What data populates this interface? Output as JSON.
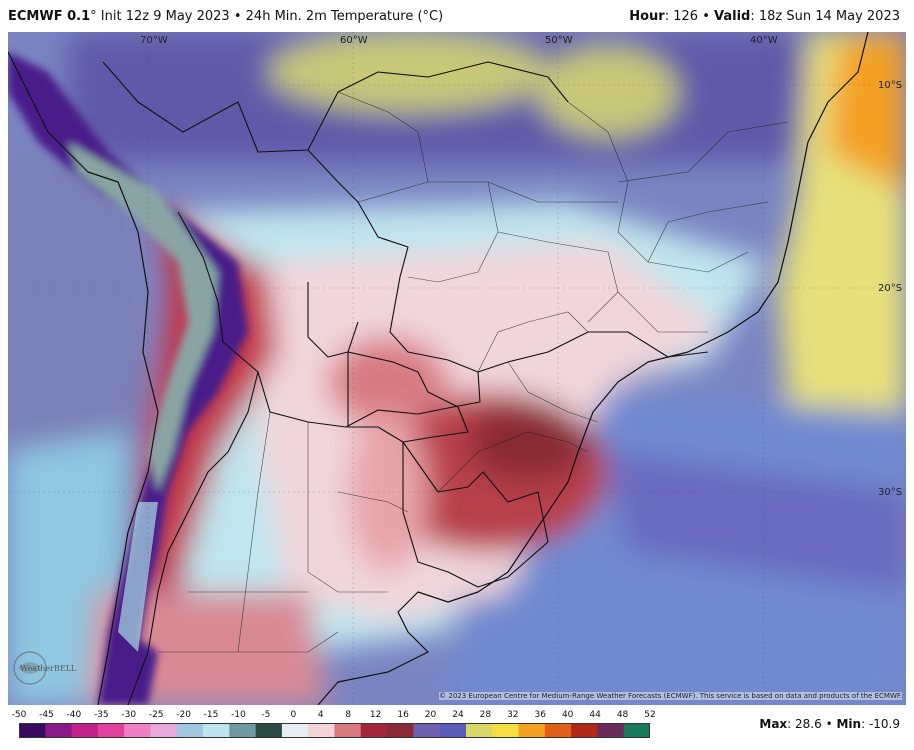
{
  "header": {
    "model": "ECMWF 0.1",
    "degree_symbol": "°",
    "init": "Init 12z 9 May 2023",
    "bullet": "•",
    "product": "24h Min. 2m Temperature (°C)",
    "hour_label": "Hour",
    "hour_value": "126",
    "valid_label": "Valid",
    "valid_value": "18z Sun 14 May 2023"
  },
  "map": {
    "longitude_labels": [
      "70°W",
      "60°W",
      "50°W",
      "40°W"
    ],
    "latitude_labels": [
      "10°S",
      "20°S",
      "30°S"
    ],
    "attribution": "© 2023 European Centre for Medium-Range Weather Forecasts (ECMWF). This service is based on data and products of the ECMWF.",
    "logo_text": "WeatherBELL"
  },
  "legend": {
    "ticks": [
      "-50",
      "-45",
      "-40",
      "-35",
      "-30",
      "-25",
      "-20",
      "-15",
      "-10",
      "-5",
      "0",
      "4",
      "8",
      "12",
      "16",
      "20",
      "24",
      "28",
      "32",
      "36",
      "40",
      "44",
      "48",
      "52"
    ],
    "colors": [
      "#3a0a5e",
      "#8a1a8a",
      "#c2228a",
      "#e0429e",
      "#ee7fc4",
      "#e8a8d8",
      "#a0c8e0",
      "#bfe4ee",
      "#6f9aa0",
      "#2a4a44",
      "#e9eef2",
      "#f4d4d6",
      "#d67a80",
      "#a2273a",
      "#8a2a36",
      "#7060b0",
      "#5a5ab8",
      "#d8d86a",
      "#f4e040",
      "#f4a020",
      "#e06018",
      "#b02818",
      "#6a2a5a",
      "#187a5a"
    ],
    "max_label": "Max",
    "max_value": "28.6",
    "min_label": "Min",
    "min_value": "-10.9"
  }
}
